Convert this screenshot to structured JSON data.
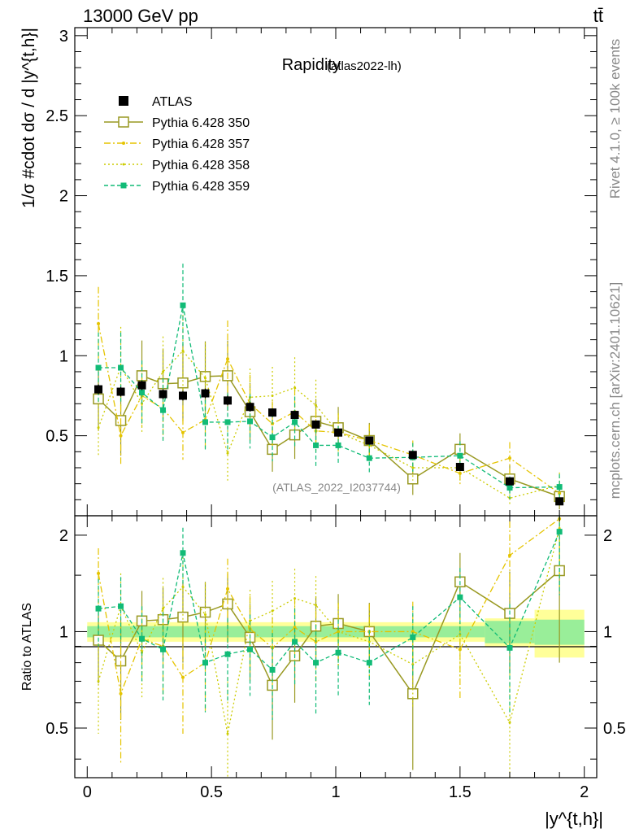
{
  "header": {
    "left": "13000 GeV pp",
    "right": "tt̄"
  },
  "side_text": {
    "top": "Rivet 4.1.0, ≥ 100k events",
    "bottom": "mcplots.cern.ch [arXiv:2401.10621]"
  },
  "watermark": "(ATLAS_2022_I2037744)",
  "chart_data": [
    {
      "type": "line",
      "panel": "main",
      "title": "Rapidity",
      "subtitle": "(atlas2022-lh)",
      "ylabel": "1/σ #cdot dσ / d |y^{t,h}|",
      "xlim": [
        -0.05,
        2.05
      ],
      "ylim": [
        0,
        3.05
      ],
      "yticks": [
        "0.5",
        "1",
        "1.5",
        "2",
        "2.5",
        "3"
      ],
      "ytick_values": [
        0.5,
        1,
        1.5,
        2,
        2.5,
        3
      ],
      "legend": [
        "ATLAS",
        "Pythia 6.428 350",
        "Pythia 6.428 357",
        "Pythia 6.428 358",
        "Pythia 6.428 359"
      ],
      "x": [
        0.045,
        0.135,
        0.22,
        0.305,
        0.385,
        0.475,
        0.565,
        0.655,
        0.745,
        0.835,
        0.92,
        1.01,
        1.135,
        1.31,
        1.5,
        1.7,
        1.9
      ],
      "atlas": {
        "values": [
          0.79,
          0.775,
          0.815,
          0.76,
          0.75,
          0.765,
          0.72,
          0.68,
          0.645,
          0.63,
          0.57,
          0.52,
          0.47,
          0.38,
          0.305,
          0.215,
          0.09
        ],
        "errors": [
          0.03,
          0.03,
          0.03,
          0.03,
          0.03,
          0.03,
          0.03,
          0.03,
          0.025,
          0.025,
          0.025,
          0.025,
          0.02,
          0.02,
          0.015,
          0.015,
          0.015
        ]
      },
      "series": [
        {
          "name": "Pythia 6.428 350",
          "color": "#999922",
          "dash": "",
          "marker": "open-square",
          "values": [
            0.73,
            0.595,
            0.875,
            0.825,
            0.83,
            0.87,
            0.875,
            0.65,
            0.415,
            0.505,
            0.59,
            0.55,
            0.47,
            0.23,
            0.415,
            0.23,
            0.12
          ],
          "errors": [
            0.2,
            0.22,
            0.22,
            0.22,
            0.24,
            0.22,
            0.22,
            0.18,
            0.14,
            0.15,
            0.14,
            0.13,
            0.11,
            0.1,
            0.1,
            0.09,
            0.08
          ]
        },
        {
          "name": "Pythia 6.428 357",
          "color": "#E5C400",
          "dash": "8,3,2,3",
          "marker": "dot",
          "values": [
            1.2,
            0.5,
            0.75,
            0.67,
            0.52,
            0.6,
            0.98,
            0.7,
            0.575,
            0.65,
            0.53,
            0.52,
            0.47,
            0.38,
            0.265,
            0.36,
            0.14
          ],
          "errors": [
            0.23,
            0.19,
            0.2,
            0.2,
            0.17,
            0.18,
            0.24,
            0.18,
            0.14,
            0.15,
            0.13,
            0.12,
            0.1,
            0.09,
            0.08,
            0.1,
            0.07
          ]
        },
        {
          "name": "Pythia 6.428 358",
          "color": "#CCCC00",
          "dash": "2,3",
          "marker": "dot",
          "values": [
            0.55,
            0.93,
            0.7,
            0.9,
            1.03,
            0.86,
            0.39,
            0.74,
            0.75,
            0.8,
            0.69,
            0.52,
            0.44,
            0.3,
            0.3,
            0.11,
            0.19
          ],
          "errors": [
            0.17,
            0.25,
            0.19,
            0.22,
            0.25,
            0.22,
            0.17,
            0.18,
            0.18,
            0.19,
            0.16,
            0.12,
            0.1,
            0.08,
            0.08,
            0.05,
            0.08
          ]
        },
        {
          "name": "Pythia 6.428 359",
          "color": "#11BB77",
          "dash": "5,3",
          "marker": "filled-square",
          "values": [
            0.925,
            0.925,
            0.77,
            0.66,
            1.315,
            0.585,
            0.585,
            0.59,
            0.49,
            0.585,
            0.44,
            0.44,
            0.36,
            0.365,
            0.375,
            0.175,
            0.18
          ],
          "errors": [
            0.22,
            0.22,
            0.2,
            0.2,
            0.26,
            0.18,
            0.18,
            0.17,
            0.15,
            0.16,
            0.14,
            0.12,
            0.1,
            0.09,
            0.09,
            0.07,
            0.08
          ]
        }
      ]
    },
    {
      "type": "line",
      "panel": "ratio",
      "ylabel": "Ratio to ATLAS",
      "xlabel": "|y^{t,h}|",
      "xlim": [
        -0.05,
        2.05
      ],
      "ylim": [
        0.35,
        2.3
      ],
      "xticks": [
        "0",
        "0.5",
        "1",
        "1.5",
        "2"
      ],
      "xtick_values": [
        0,
        0.5,
        1,
        1.5,
        2
      ],
      "yticks": [
        "0.5",
        "1",
        "2"
      ],
      "ytick_values": [
        0.5,
        1,
        2
      ],
      "bands": [
        {
          "x0": 0.0,
          "x1": 1.6,
          "inner": 0.04,
          "outer": 0.07
        },
        {
          "x0": 1.6,
          "x1": 1.8,
          "inner": 0.08,
          "outer": 0.1
        },
        {
          "x0": 1.8,
          "x1": 2.0,
          "inner": 0.09,
          "outer": 0.17
        }
      ],
      "series": [
        {
          "name": "Pythia 6.428 350",
          "values": [
            0.94,
            0.81,
            1.08,
            1.09,
            1.11,
            1.15,
            1.22,
            0.96,
            0.68,
            0.84,
            1.04,
            1.06,
            1.0,
            0.64,
            1.43,
            1.14,
            1.55
          ],
          "errors": [
            0.25,
            0.28,
            0.26,
            0.28,
            0.31,
            0.28,
            0.3,
            0.26,
            0.22,
            0.24,
            0.25,
            0.25,
            0.23,
            0.27,
            0.33,
            0.4,
            0.75
          ]
        },
        {
          "name": "Pythia 6.428 357",
          "values": [
            1.52,
            0.64,
            0.95,
            0.9,
            0.72,
            0.8,
            1.36,
            1.02,
            0.89,
            1.03,
            0.93,
            1.0,
            1.0,
            1.0,
            0.88,
            1.73,
            2.25
          ],
          "errors": [
            0.3,
            0.25,
            0.25,
            0.27,
            0.24,
            0.24,
            0.33,
            0.27,
            0.22,
            0.24,
            0.23,
            0.23,
            0.22,
            0.24,
            0.26,
            0.48,
            0.75
          ]
        },
        {
          "name": "Pythia 6.428 358",
          "values": [
            0.7,
            1.2,
            0.86,
            1.18,
            1.38,
            1.13,
            0.48,
            1.08,
            1.16,
            1.27,
            1.21,
            1.0,
            0.93,
            0.79,
            0.98,
            0.52,
            2.1
          ],
          "errors": [
            0.22,
            0.32,
            0.24,
            0.29,
            0.33,
            0.29,
            0.24,
            0.27,
            0.28,
            0.3,
            0.28,
            0.23,
            0.21,
            0.21,
            0.26,
            0.24,
            0.75
          ]
        },
        {
          "name": "Pythia 6.428 359",
          "values": [
            1.18,
            1.2,
            0.95,
            0.88,
            1.76,
            0.8,
            0.85,
            0.88,
            0.76,
            0.93,
            0.8,
            0.86,
            0.8,
            0.96,
            1.28,
            0.89,
            2.05
          ],
          "errors": [
            0.28,
            0.28,
            0.25,
            0.27,
            0.35,
            0.24,
            0.25,
            0.25,
            0.23,
            0.25,
            0.25,
            0.23,
            0.21,
            0.24,
            0.3,
            0.33,
            0.75
          ]
        }
      ]
    }
  ]
}
